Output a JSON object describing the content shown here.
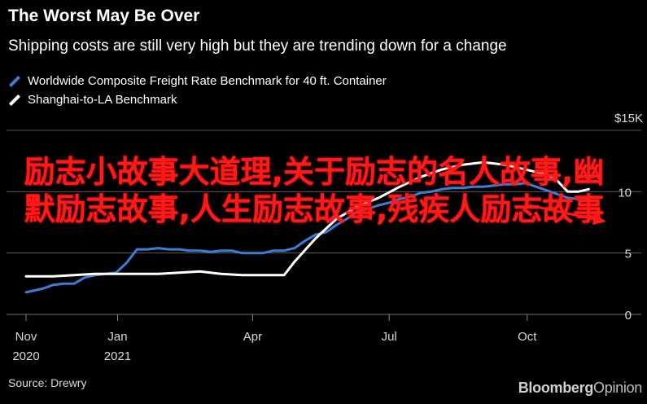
{
  "chart_data": {
    "type": "line",
    "title": "The Worst May Be Over",
    "subtitle": "Shipping costs are still very high but they are trending down for a change",
    "xlabel": "",
    "ylabel": "",
    "y_unit_label": "$15K",
    "ylim": [
      0,
      15
    ],
    "yticks": [
      0,
      5,
      10
    ],
    "xlim": [
      "2020-11-01",
      "2021-11-20"
    ],
    "xticks": [
      {
        "date": "2020-11-01",
        "label": "Nov",
        "label2": "2020"
      },
      {
        "date": "2021-01-01",
        "label": "Jan",
        "label2": "2021"
      },
      {
        "date": "2021-04-01",
        "label": "Apr",
        "label2": ""
      },
      {
        "date": "2021-07-01",
        "label": "Jul",
        "label2": ""
      },
      {
        "date": "2021-10-01",
        "label": "Oct",
        "label2": ""
      }
    ],
    "grid": true,
    "legend_position": "top-left",
    "series": [
      {
        "name": "Worldwide Composite Freight Rate Benchmark for 40 ft. Container",
        "color": "#3b7dd8",
        "points": [
          [
            "2020-11-01",
            1.8
          ],
          [
            "2020-11-12",
            2.1
          ],
          [
            "2020-11-19",
            2.4
          ],
          [
            "2020-11-26",
            2.5
          ],
          [
            "2020-12-03",
            2.5
          ],
          [
            "2020-12-10",
            3.0
          ],
          [
            "2020-12-17",
            3.2
          ],
          [
            "2020-12-24",
            3.3
          ],
          [
            "2020-12-31",
            3.4
          ],
          [
            "2021-01-07",
            4.2
          ],
          [
            "2021-01-14",
            5.3
          ],
          [
            "2021-01-21",
            5.3
          ],
          [
            "2021-01-28",
            5.4
          ],
          [
            "2021-02-04",
            5.3
          ],
          [
            "2021-02-11",
            5.3
          ],
          [
            "2021-02-18",
            5.2
          ],
          [
            "2021-02-25",
            5.2
          ],
          [
            "2021-03-04",
            5.1
          ],
          [
            "2021-03-11",
            5.2
          ],
          [
            "2021-03-18",
            5.2
          ],
          [
            "2021-03-25",
            5.0
          ],
          [
            "2021-04-01",
            5.0
          ],
          [
            "2021-04-08",
            5.0
          ],
          [
            "2021-04-15",
            5.2
          ],
          [
            "2021-04-22",
            5.2
          ],
          [
            "2021-04-29",
            5.4
          ],
          [
            "2021-05-06",
            6.0
          ],
          [
            "2021-05-13",
            6.5
          ],
          [
            "2021-05-20",
            6.7
          ],
          [
            "2021-05-27",
            7.3
          ],
          [
            "2021-06-03",
            7.8
          ],
          [
            "2021-06-10",
            8.4
          ],
          [
            "2021-06-17",
            8.6
          ],
          [
            "2021-06-24",
            8.9
          ],
          [
            "2021-07-01",
            9.1
          ],
          [
            "2021-07-08",
            9.4
          ],
          [
            "2021-07-15",
            9.6
          ],
          [
            "2021-07-22",
            9.9
          ],
          [
            "2021-07-29",
            10.0
          ],
          [
            "2021-08-05",
            10.2
          ],
          [
            "2021-08-12",
            10.3
          ],
          [
            "2021-08-19",
            10.3
          ],
          [
            "2021-08-26",
            10.4
          ],
          [
            "2021-09-02",
            10.4
          ],
          [
            "2021-09-09",
            10.5
          ],
          [
            "2021-09-16",
            10.6
          ],
          [
            "2021-09-23",
            10.6
          ],
          [
            "2021-09-30",
            10.7
          ],
          [
            "2021-10-07",
            10.4
          ],
          [
            "2021-10-14",
            10.1
          ],
          [
            "2021-10-21",
            9.8
          ],
          [
            "2021-10-28",
            9.5
          ],
          [
            "2021-11-04",
            9.4
          ],
          [
            "2021-11-11",
            9.3
          ]
        ]
      },
      {
        "name": "Shanghai-to-LA Benchmark",
        "color": "#ffffff",
        "points": [
          [
            "2020-11-01",
            3.1
          ],
          [
            "2020-11-19",
            3.1
          ],
          [
            "2020-12-03",
            3.2
          ],
          [
            "2020-12-17",
            3.3
          ],
          [
            "2020-12-31",
            3.3
          ],
          [
            "2021-01-14",
            3.3
          ],
          [
            "2021-01-28",
            3.3
          ],
          [
            "2021-02-11",
            3.4
          ],
          [
            "2021-02-25",
            3.5
          ],
          [
            "2021-03-11",
            3.3
          ],
          [
            "2021-03-25",
            3.2
          ],
          [
            "2021-04-08",
            3.2
          ],
          [
            "2021-04-22",
            3.2
          ],
          [
            "2021-04-29",
            4.3
          ],
          [
            "2021-05-13",
            6.2
          ],
          [
            "2021-05-27",
            7.8
          ],
          [
            "2021-06-10",
            8.8
          ],
          [
            "2021-06-24",
            9.5
          ],
          [
            "2021-07-08",
            10.4
          ],
          [
            "2021-07-22",
            11.2
          ],
          [
            "2021-08-05",
            11.8
          ],
          [
            "2021-08-19",
            12.2
          ],
          [
            "2021-09-02",
            12.4
          ],
          [
            "2021-09-16",
            12.2
          ],
          [
            "2021-09-30",
            11.8
          ],
          [
            "2021-10-14",
            11.4
          ],
          [
            "2021-10-21",
            10.9
          ],
          [
            "2021-10-28",
            10.0
          ],
          [
            "2021-11-04",
            10.0
          ],
          [
            "2021-11-11",
            10.2
          ]
        ]
      }
    ]
  },
  "overlay": {
    "text": "励志小故事大道理,关于励志的名人故事,幽默励志故事,人生励志故事,残疾人励志故事",
    "color": "#ff1a1a"
  },
  "source": "Source: Drewry",
  "brand": {
    "bold": "Bloomberg",
    "thin": "Opinion"
  }
}
